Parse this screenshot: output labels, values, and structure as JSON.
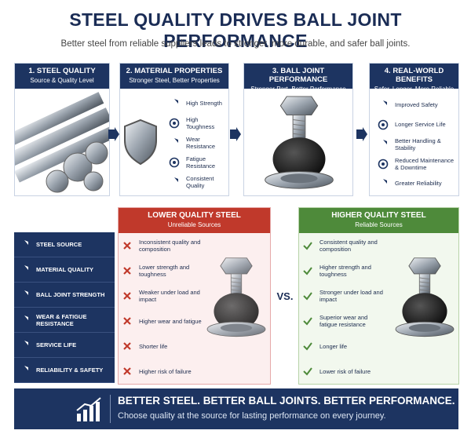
{
  "header": {
    "title": "STEEL QUALITY DRIVES BALL JOINT PERFORMANCE",
    "subtitle": "Better steel from reliable suppliers leads to stronger, more durable, and safer ball joints."
  },
  "steps": [
    {
      "title": "1. STEEL QUALITY",
      "subtitle": "Source & Quality Level"
    },
    {
      "title": "2. MATERIAL PROPERTIES",
      "subtitle": "Stronger Steel, Better Properties",
      "items": [
        "High Strength",
        "High Toughness",
        "Wear Resistance",
        "Fatigue Resistance",
        "Consistent Quality"
      ]
    },
    {
      "title": "3. BALL JOINT PERFORMANCE",
      "subtitle": "Stronger Part, Better Performance"
    },
    {
      "title": "4. REAL-WORLD BENEFITS",
      "subtitle": "Safer, Longer, More Reliable",
      "items": [
        "Improved Safety",
        "Longer Service Life",
        "Better Handling & Stability",
        "Reduced Maintenance & Downtime",
        "Greater Reliability"
      ]
    }
  ],
  "comparison": {
    "rows": [
      "STEEL SOURCE",
      "MATERIAL QUALITY",
      "BALL JOINT STRENGTH",
      "WEAR & FATIGUE RESISTANCE",
      "SERVICE LIFE",
      "RELIABILITY & SAFETY"
    ],
    "lower": {
      "title": "LOWER QUALITY STEEL",
      "subtitle": "Unreliable Sources",
      "items": [
        "Inconsistent quality and composition",
        "Lower strength and toughness",
        "Weaker under load and impact",
        "Higher wear and fatigue",
        "Shorter life",
        "Higher risk of failure"
      ]
    },
    "versus": "VS.",
    "higher": {
      "title": "HIGHER QUALITY STEEL",
      "subtitle": "Reliable Sources",
      "items": [
        "Consistent quality and composition",
        "Higher strength and toughness",
        "Stronger under load and impact",
        "Superior wear and fatigue resistance",
        "Longer life",
        "Lower risk of failure"
      ]
    }
  },
  "footer": {
    "title": "BETTER STEEL. BETTER BALL JOINTS. BETTER PERFORMANCE.",
    "subtitle": "Choose quality at the source for lasting performance on every journey."
  }
}
